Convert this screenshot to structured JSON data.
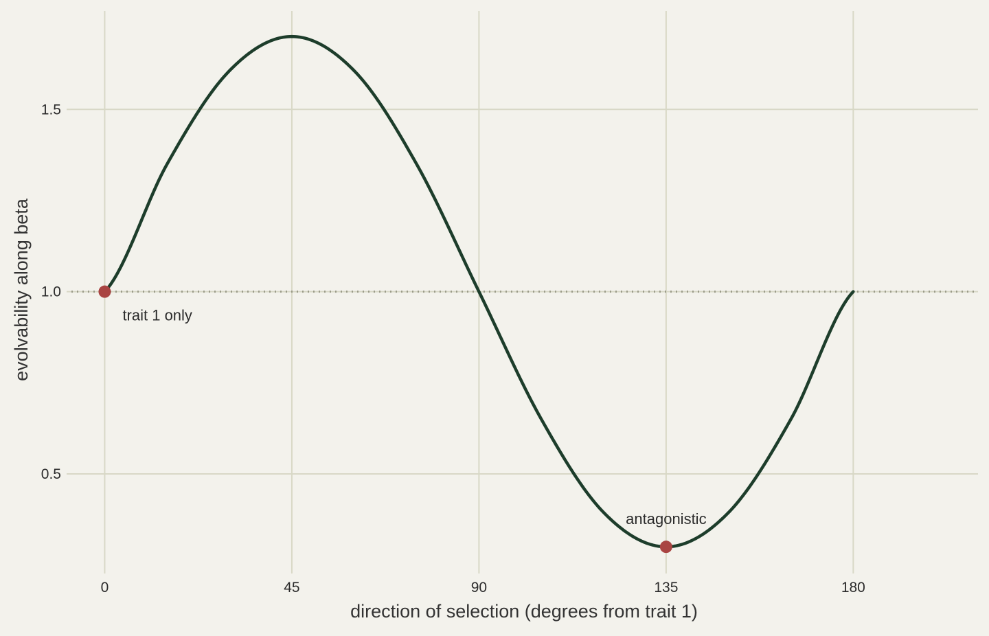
{
  "chart_data": {
    "type": "line",
    "xlabel": "direction of selection (degrees from trait 1)",
    "ylabel": "evolvability along beta",
    "xlim": [
      -8,
      210
    ],
    "ylim": [
      0.24,
      1.77
    ],
    "x_ticks": [
      0,
      45,
      90,
      135,
      180
    ],
    "x_tick_labels": [
      "0",
      "45",
      "90",
      "135",
      "180"
    ],
    "y_ticks": [
      0.5,
      1.0,
      1.5
    ],
    "y_tick_labels": [
      "0.5",
      "1.0",
      "1.5"
    ],
    "grid": true,
    "reference_line": {
      "y": 1.0,
      "style": "dotted"
    },
    "series": [
      {
        "x": [
          0,
          15,
          30,
          45,
          60,
          75,
          90,
          105,
          120,
          135,
          150,
          165,
          180
        ],
        "y": [
          1.0,
          1.35,
          1.606,
          1.7,
          1.606,
          1.35,
          1.0,
          0.65,
          0.394,
          0.3,
          0.394,
          0.65,
          1.0
        ],
        "color": "#1d3d2b"
      }
    ],
    "highlight_points": [
      {
        "x": 0,
        "y": 1.0,
        "label": "trait 1 only"
      },
      {
        "x": 135,
        "y": 0.3,
        "label": "antagonistic"
      }
    ],
    "colors": {
      "background": "#f3f2ec",
      "grid": "#d8d8c6",
      "line": "#1d3d2b",
      "points": "#a94442",
      "reference": "#9a9a88"
    }
  }
}
